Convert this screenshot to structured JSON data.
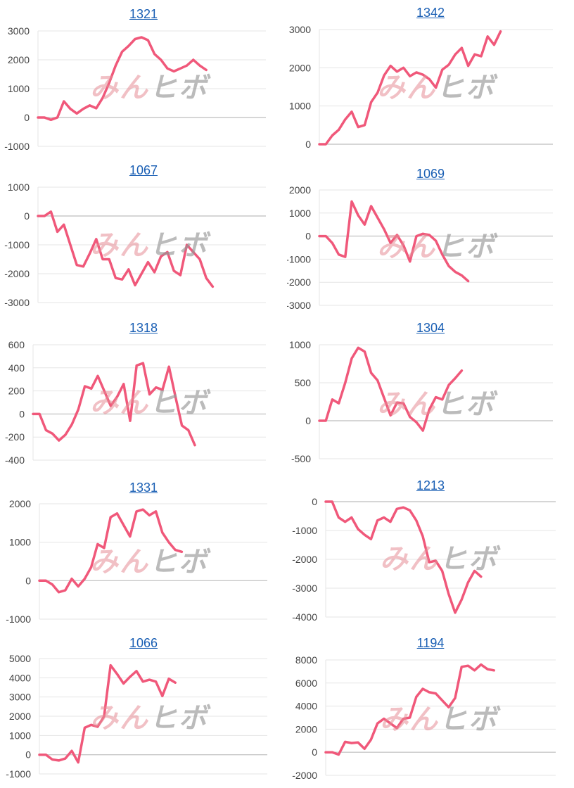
{
  "watermark": {
    "part1": "みん",
    "part2": "ヒボ"
  },
  "colors": {
    "line": "#f0587a",
    "grid": "#e5e5e5",
    "axis": "#c8c8c8",
    "title": "#1a5fb4",
    "text": "#444444"
  },
  "chart_data": [
    {
      "type": "line",
      "title": "1321",
      "yticks": [
        3000,
        2000,
        1000,
        0,
        -1000
      ],
      "ylim": [
        -1000,
        3000
      ],
      "values": [
        0,
        0,
        -80,
        0,
        560,
        300,
        140,
        300,
        420,
        320,
        680,
        1200,
        1800,
        2280,
        2480,
        2720,
        2780,
        2680,
        2200,
        2000,
        1700,
        1600,
        1700,
        1800,
        2000,
        1800,
        1650
      ]
    },
    {
      "type": "line",
      "title": "1342",
      "yticks": [
        3000,
        2000,
        1000,
        0
      ],
      "ylim": [
        0,
        3000
      ],
      "values": [
        0,
        0,
        230,
        380,
        650,
        850,
        450,
        500,
        1100,
        1350,
        1800,
        2050,
        1900,
        2000,
        1780,
        1880,
        1820,
        1700,
        1480,
        1950,
        2080,
        2350,
        2520,
        2050,
        2350,
        2300,
        2820,
        2600,
        2950
      ]
    },
    {
      "type": "line",
      "title": "1067",
      "yticks": [
        1000,
        0,
        -1000,
        -2000,
        -3000
      ],
      "ylim": [
        -3000,
        1000
      ],
      "values": [
        0,
        0,
        150,
        -550,
        -300,
        -1000,
        -1700,
        -1750,
        -1300,
        -800,
        -1500,
        -1500,
        -2150,
        -2200,
        -1850,
        -2400,
        -2000,
        -1600,
        -1950,
        -1400,
        -1250,
        -1900,
        -2050,
        -1000,
        -1250,
        -1500,
        -2150,
        -2450
      ]
    },
    {
      "type": "line",
      "title": "1069",
      "yticks": [
        2000,
        1000,
        0,
        -1000,
        -2000,
        -3000
      ],
      "ylim": [
        -3000,
        2000
      ],
      "values": [
        0,
        0,
        -300,
        -800,
        -900,
        1500,
        900,
        500,
        1300,
        800,
        300,
        -300,
        50,
        -400,
        -1100,
        0,
        100,
        50,
        -200,
        -800,
        -1300,
        -1550,
        -1700,
        -1950
      ]
    },
    {
      "type": "line",
      "title": "1318",
      "yticks": [
        600,
        400,
        200,
        0,
        -200,
        -400
      ],
      "ylim": [
        -400,
        600
      ],
      "values": [
        0,
        0,
        -140,
        -170,
        -230,
        -180,
        -90,
        40,
        240,
        220,
        330,
        200,
        70,
        150,
        260,
        -60,
        420,
        440,
        170,
        230,
        210,
        410,
        150,
        -100,
        -140,
        -270
      ]
    },
    {
      "type": "line",
      "title": "1304",
      "yticks": [
        1000,
        500,
        0,
        -500
      ],
      "ylim": [
        -500,
        1000
      ],
      "values": [
        0,
        0,
        280,
        230,
        500,
        820,
        960,
        910,
        630,
        530,
        300,
        70,
        240,
        230,
        50,
        -20,
        -130,
        150,
        310,
        280,
        470,
        560,
        660
      ]
    },
    {
      "type": "line",
      "title": "1331",
      "yticks": [
        2000,
        1000,
        0,
        -1000
      ],
      "ylim": [
        -1000,
        2000
      ],
      "values": [
        0,
        0,
        -100,
        -300,
        -250,
        50,
        -150,
        50,
        350,
        950,
        850,
        1650,
        1750,
        1450,
        1150,
        1800,
        1850,
        1700,
        1800,
        1250,
        1000,
        800,
        750
      ]
    },
    {
      "type": "line",
      "title": "1213",
      "yticks": [
        0,
        -1000,
        -2000,
        -3000,
        -4000
      ],
      "ylim": [
        -4000,
        0
      ],
      "values": [
        0,
        0,
        -550,
        -700,
        -550,
        -950,
        -1150,
        -1300,
        -650,
        -550,
        -700,
        -250,
        -200,
        -300,
        -650,
        -1200,
        -2100,
        -2050,
        -2400,
        -3200,
        -3850,
        -3400,
        -2800,
        -2400,
        -2600
      ]
    },
    {
      "type": "line",
      "title": "1066",
      "yticks": [
        5000,
        4000,
        3000,
        2000,
        1000,
        0,
        -1000
      ],
      "ylim": [
        -1000,
        5000
      ],
      "values": [
        0,
        0,
        -250,
        -300,
        -200,
        200,
        -400,
        1400,
        1550,
        1450,
        2000,
        4650,
        4200,
        3700,
        4050,
        4350,
        3800,
        3900,
        3800,
        3050,
        3950,
        3750
      ]
    },
    {
      "type": "line",
      "title": "1194",
      "yticks": [
        8000,
        6000,
        4000,
        2000,
        0,
        -2000
      ],
      "ylim": [
        -2000,
        8000
      ],
      "values": [
        0,
        0,
        -200,
        900,
        800,
        850,
        300,
        1100,
        2500,
        2900,
        2500,
        2100,
        2900,
        3000,
        4800,
        5500,
        5200,
        5100,
        4500,
        3900,
        4700,
        7400,
        7500,
        7100,
        7600,
        7200,
        7100
      ]
    }
  ]
}
